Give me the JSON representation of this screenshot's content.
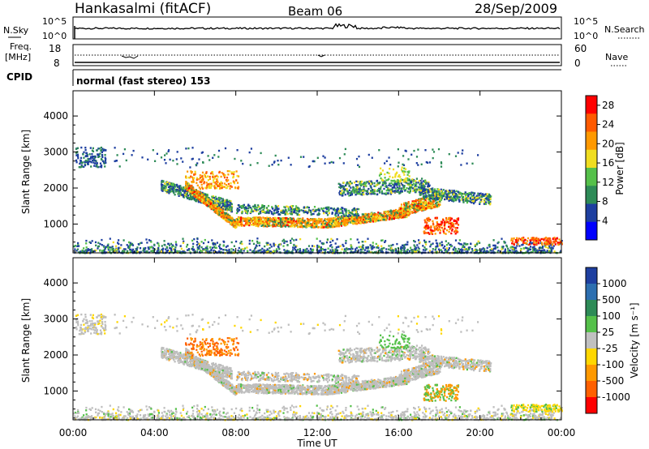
{
  "header": {
    "station": "Hankasalmi (fitACF)",
    "beam": "Beam 06",
    "date": "28/Sep/2009"
  },
  "noise_panel": {
    "left_label": "N.Sky",
    "left_ticks": [
      "10^5",
      "10^0"
    ],
    "right_ticks": [
      "10^5",
      "10^0"
    ],
    "right_label": "N.Search"
  },
  "freq_panel": {
    "left_label_1": "Freq.",
    "left_label_2": "[MHz]",
    "left_ticks": [
      "18",
      "8"
    ],
    "right_ticks": [
      "60",
      "0"
    ],
    "right_label": "Nave"
  },
  "cpid": {
    "label": "CPID",
    "text": "normal (fast stereo) 153"
  },
  "colors": {
    "power_scale": [
      "#0000ff",
      "#1e3fa0",
      "#2e8b57",
      "#55c04a",
      "#f0dd20",
      "#ff9900",
      "#ff5a00",
      "#ff0000"
    ],
    "velocity_scale": [
      "#1e3fa0",
      "#2d6fb0",
      "#2e8b57",
      "#55c04a",
      "#c0c0c0",
      "#ffd700",
      "#ff9900",
      "#ff6000",
      "#ff0000"
    ],
    "ground_scatter": "#bebebe"
  },
  "chart_data": [
    {
      "type": "heatmap",
      "name": "power",
      "xlabel": "Time UT",
      "ylabel": "Slant Range [km]",
      "y_ticks": [
        "1000",
        "2000",
        "3000",
        "4000"
      ],
      "ylim": [
        200,
        4700
      ],
      "xlim": [
        0,
        24
      ],
      "colorbar_label": "Power [dB]",
      "colorbar_ticks": [
        "4",
        "8",
        "12",
        "16",
        "20",
        "24",
        "28"
      ],
      "colorbar_range": [
        0,
        30
      ]
    },
    {
      "type": "heatmap",
      "name": "velocity",
      "xlabel": "Time UT",
      "ylabel": "Slant Range [km]",
      "y_ticks": [
        "1000",
        "2000",
        "3000",
        "4000"
      ],
      "ylim": [
        200,
        4700
      ],
      "xlim": [
        0,
        24
      ],
      "colorbar_label": "Velocity [m s⁻¹]",
      "colorbar_ticks": [
        "1000",
        "500",
        "100",
        "25",
        "-25",
        "-100",
        "-500",
        "-1000"
      ]
    }
  ],
  "x_axis": {
    "ticks": [
      "00:00",
      "04:00",
      "08:00",
      "12:00",
      "16:00",
      "20:00",
      "00:00"
    ],
    "label": "Time UT"
  }
}
